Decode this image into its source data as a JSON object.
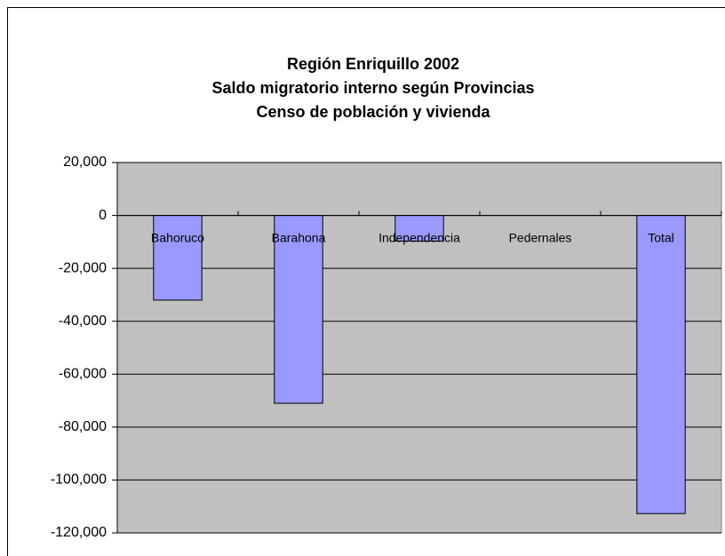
{
  "chart_data": {
    "type": "bar",
    "title": [
      "Región Enriquillo 2002",
      "Saldo migratorio interno según Provincias",
      "Censo de población y vivienda"
    ],
    "categories": [
      "Bahoruco",
      "Barahona",
      "Independencia",
      "Pedernales",
      "Total"
    ],
    "values": [
      -32000,
      -71000,
      -9700,
      0,
      -112700
    ],
    "color": "#9999ff",
    "ylim": [
      -120000,
      20000
    ],
    "yticks": [
      {
        "value": -120000,
        "label": "-120,000"
      },
      {
        "value": -100000,
        "label": "-100,000"
      },
      {
        "value": -80000,
        "label": "-80,000"
      },
      {
        "value": -60000,
        "label": "-60,000"
      },
      {
        "value": -40000,
        "label": "-40,000"
      },
      {
        "value": -20000,
        "label": "-20,000"
      },
      0,
      {
        "value": 20000,
        "label": "20,000"
      }
    ],
    "grid": true
  }
}
